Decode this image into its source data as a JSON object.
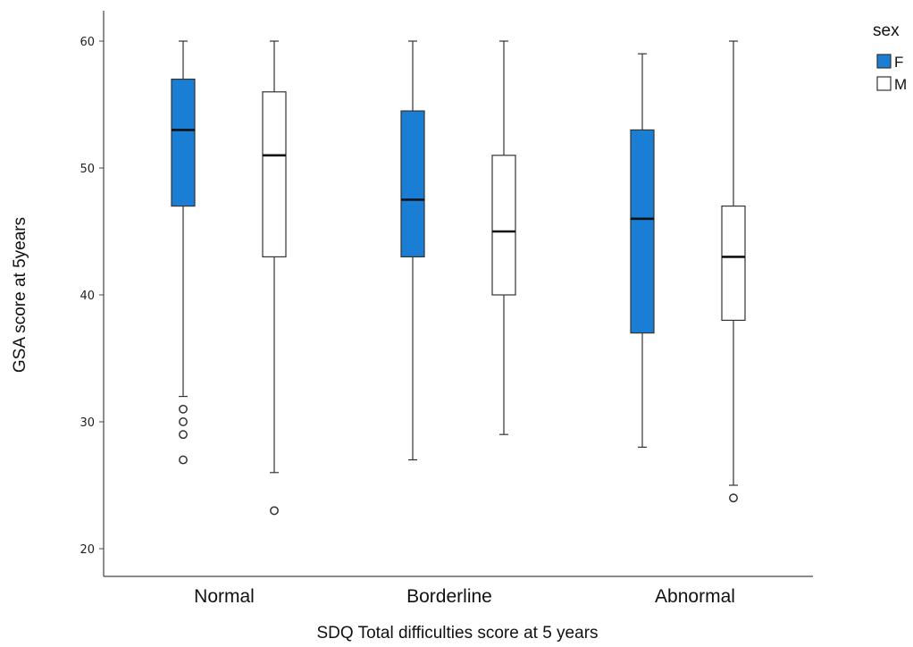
{
  "chart_data": {
    "type": "boxplot",
    "title": "",
    "xlabel": "SDQ Total difficulties score at 5 years",
    "ylabel": "GSA score at 5years",
    "ylim": [
      18,
      62
    ],
    "yticks": [
      20,
      30,
      40,
      50,
      60
    ],
    "categories": [
      "Normal",
      "Borderline",
      "Abnormal"
    ],
    "legend": {
      "title": "sex",
      "position": "top-right"
    },
    "series": [
      {
        "name": "F",
        "color": "#1a7fd4",
        "boxes": [
          {
            "whisker_low": 32,
            "q1": 47,
            "median": 53,
            "q3": 57,
            "whisker_high": 60,
            "outliers": [
              31,
              30,
              29,
              27
            ]
          },
          {
            "whisker_low": 27,
            "q1": 43,
            "median": 47.5,
            "q3": 54.5,
            "whisker_high": 60,
            "outliers": []
          },
          {
            "whisker_low": 28,
            "q1": 37,
            "median": 46,
            "q3": 53,
            "whisker_high": 59,
            "outliers": []
          }
        ]
      },
      {
        "name": "M",
        "color": "#ffffff",
        "boxes": [
          {
            "whisker_low": 26,
            "q1": 43,
            "median": 51,
            "q3": 56,
            "whisker_high": 60,
            "outliers": [
              23
            ]
          },
          {
            "whisker_low": 29,
            "q1": 40,
            "median": 45,
            "q3": 51,
            "whisker_high": 60,
            "outliers": []
          },
          {
            "whisker_low": 25,
            "q1": 38,
            "median": 43,
            "q3": 47,
            "whisker_high": 60,
            "outliers": [
              24
            ]
          }
        ]
      }
    ]
  }
}
